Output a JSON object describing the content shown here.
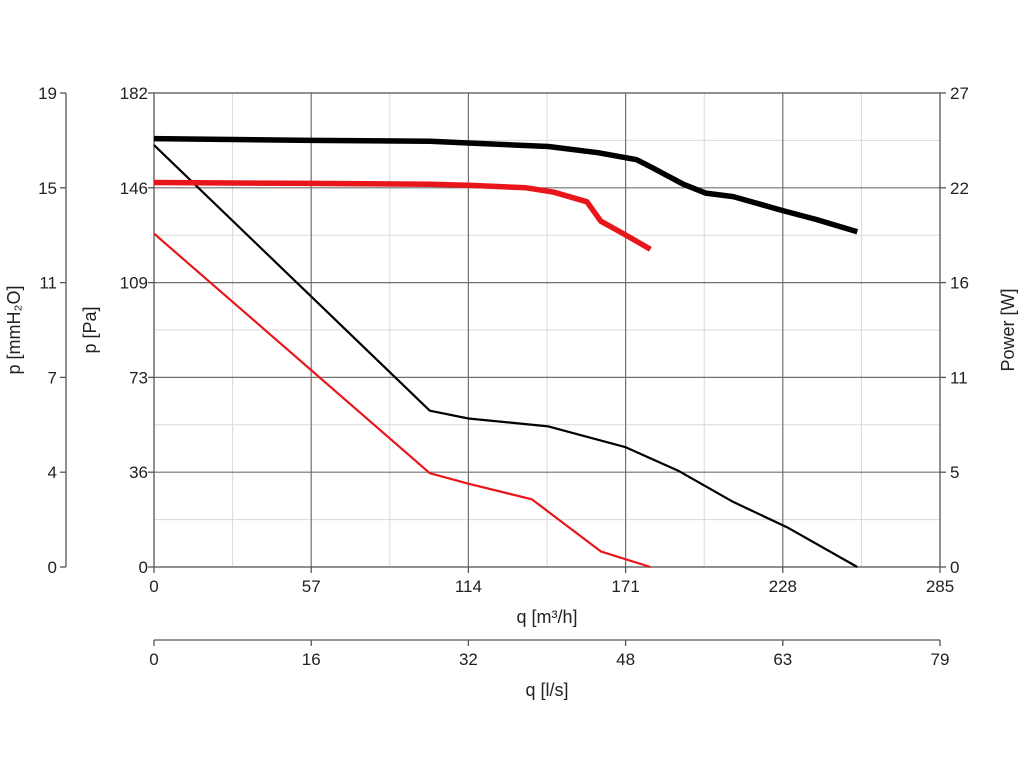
{
  "chart_data": {
    "type": "line",
    "grid": true,
    "axes": {
      "x_main": {
        "label": "q [m³/h]",
        "range": [
          0,
          285
        ],
        "ticks": [
          "0",
          "57",
          "114",
          "171",
          "228",
          "285"
        ]
      },
      "x_secondary": {
        "label": "q [l/s]",
        "ticks": [
          "0",
          "16",
          "32",
          "48",
          "63",
          "79"
        ]
      },
      "y_main": {
        "label": "p [Pa]",
        "range": [
          0,
          182
        ],
        "ticks": [
          "0",
          "36",
          "73",
          "109",
          "146",
          "182"
        ]
      },
      "y_secondary": {
        "label": "p [mmH₂O]",
        "ticks": [
          "0",
          "4",
          "7",
          "11",
          "15",
          "19"
        ]
      },
      "y_right": {
        "label": "Power [W]",
        "range": [
          0,
          27
        ],
        "ticks": [
          "0",
          "5",
          "11",
          "16",
          "22",
          "27"
        ]
      }
    },
    "series": [
      {
        "axis": "pressure",
        "color": "#000000",
        "weight": "thin",
        "points": [
          [
            0,
            162
          ],
          [
            100,
            60
          ],
          [
            114,
            57
          ],
          [
            143,
            54
          ],
          [
            171,
            46
          ],
          [
            190,
            37
          ],
          [
            210,
            25
          ],
          [
            230,
            15
          ],
          [
            255,
            0
          ]
        ]
      },
      {
        "axis": "pressure",
        "color": "#e8161a",
        "weight": "thin",
        "points": [
          [
            0,
            128
          ],
          [
            100,
            36
          ],
          [
            114,
            32
          ],
          [
            137,
            26
          ],
          [
            147,
            18
          ],
          [
            162,
            6
          ],
          [
            180,
            0
          ]
        ]
      },
      {
        "axis": "power",
        "color": "#000000",
        "weight": "thick",
        "points": [
          [
            0,
            24.4
          ],
          [
            57,
            24.3
          ],
          [
            100,
            24.25
          ],
          [
            114,
            24.15
          ],
          [
            143,
            23.95
          ],
          [
            161,
            23.6
          ],
          [
            175,
            23.2
          ],
          [
            180,
            22.8
          ],
          [
            192,
            21.8
          ],
          [
            200,
            21.3
          ],
          [
            210,
            21.1
          ],
          [
            228,
            20.3
          ],
          [
            240,
            19.8
          ],
          [
            255,
            19.1
          ]
        ]
      },
      {
        "axis": "power",
        "color": "#e8161a",
        "weight": "thick",
        "points": [
          [
            0,
            21.9
          ],
          [
            57,
            21.85
          ],
          [
            100,
            21.8
          ],
          [
            114,
            21.75
          ],
          [
            135,
            21.6
          ],
          [
            145,
            21.35
          ],
          [
            157,
            20.8
          ],
          [
            162,
            19.7
          ],
          [
            170,
            19.0
          ],
          [
            180,
            18.1
          ]
        ]
      }
    ]
  }
}
